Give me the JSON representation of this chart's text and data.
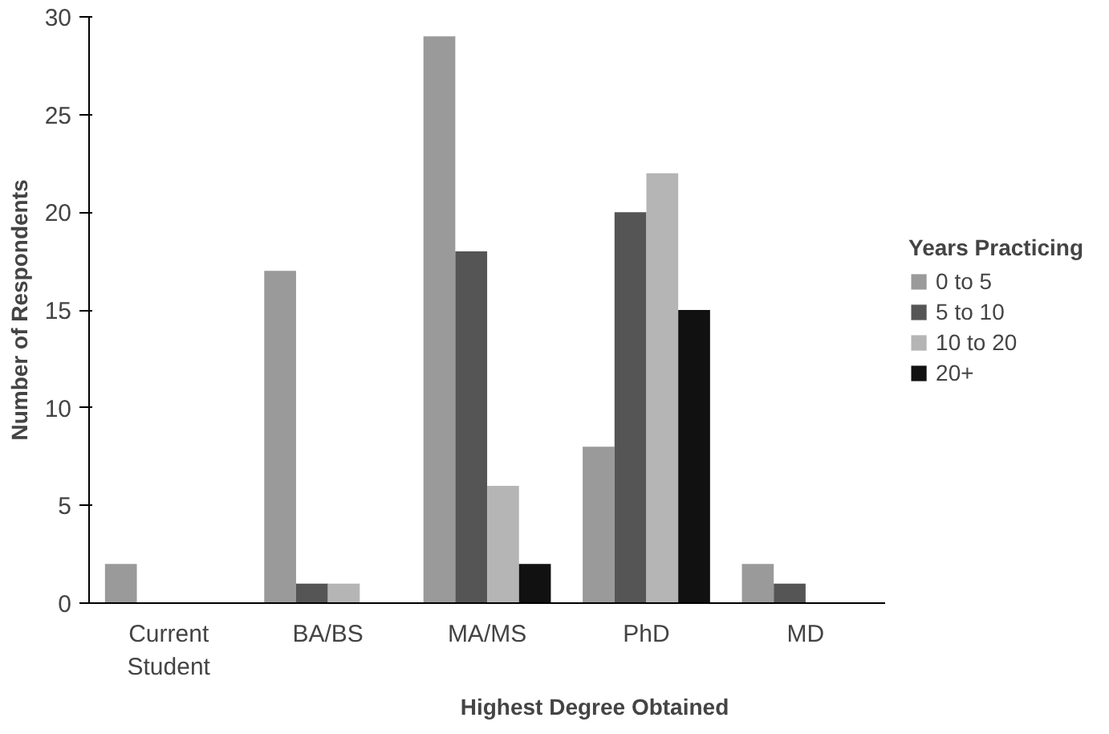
{
  "chart_data": {
    "type": "bar",
    "xlabel": "Highest Degree Obtained",
    "ylabel": "Number of Respondents",
    "categories": [
      "Current Student",
      "BA/BS",
      "MA/MS",
      "PhD",
      "MD"
    ],
    "series": [
      {
        "name": "0 to 5",
        "color": "#9a9a9a",
        "values": [
          2,
          17,
          29,
          8,
          2
        ]
      },
      {
        "name": "5 to 10",
        "color": "#555555",
        "values": [
          0,
          1,
          18,
          20,
          1
        ]
      },
      {
        "name": "10 to 20",
        "color": "#b5b5b5",
        "values": [
          0,
          1,
          6,
          22,
          0
        ]
      },
      {
        "name": "20+",
        "color": "#111111",
        "values": [
          0,
          0,
          2,
          15,
          0
        ]
      }
    ],
    "legend_title": "Years Practicing",
    "legend": "right",
    "ylim": [
      0,
      30
    ],
    "yticks": [
      0,
      5,
      10,
      15,
      20,
      25,
      30
    ],
    "grid": false
  }
}
